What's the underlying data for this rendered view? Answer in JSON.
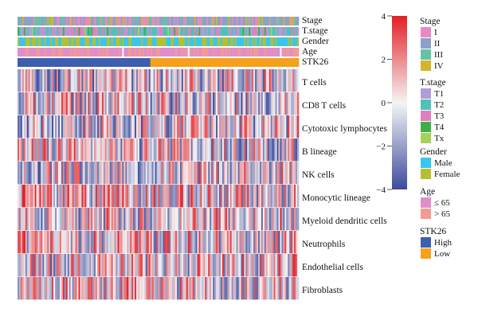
{
  "chart_data": {
    "type": "heatmap",
    "title": "",
    "annotation_tracks": [
      "Stage",
      "T.stage",
      "Gender",
      "Age",
      "STK26"
    ],
    "rows": [
      "T cells",
      "CD8 T cells",
      "Cytotoxic lymphocytes",
      "B lineage",
      "NK cells",
      "Monocytic lineage",
      "Myeloid dendritic cells",
      "Neutrophils",
      "Endothelial cells",
      "Fibroblasts"
    ],
    "color_scale": {
      "range": [
        -4,
        4
      ],
      "ticks": [
        "4",
        "2",
        "0",
        "−2",
        "−4"
      ],
      "tick_values": [
        4,
        2,
        0,
        -2,
        -4
      ],
      "low_color": "#3b4a9c",
      "mid_color": "#f5f5f5",
      "high_color": "#e21f26"
    },
    "stk26_groups": {
      "High": 0.47,
      "Low": 0.53
    },
    "legends": [
      {
        "title": "Stage",
        "items": [
          {
            "label": "I",
            "color": "#e78ac3"
          },
          {
            "label": "II",
            "color": "#8da0cb"
          },
          {
            "label": "III",
            "color": "#66c2a5"
          },
          {
            "label": "IV",
            "color": "#d4b42a"
          }
        ]
      },
      {
        "title": "T.stage",
        "items": [
          {
            "label": "T1",
            "color": "#b19cd9"
          },
          {
            "label": "T2",
            "color": "#4ec3b5"
          },
          {
            "label": "T3",
            "color": "#e37fbf"
          },
          {
            "label": "T4",
            "color": "#3fae49"
          },
          {
            "label": "Tx",
            "color": "#a6d15a"
          }
        ]
      },
      {
        "title": "Gender",
        "items": [
          {
            "label": "Male",
            "color": "#38c6f0"
          },
          {
            "label": "Female",
            "color": "#b6bf2f"
          }
        ]
      },
      {
        "title": "Age",
        "items": [
          {
            "label": "≤ 65",
            "color": "#df8fc8"
          },
          {
            "label": "> 65",
            "color": "#f39a93"
          }
        ]
      },
      {
        "title": "STK26",
        "items": [
          {
            "label": "High",
            "color": "#3d5fad"
          },
          {
            "label": "Low",
            "color": "#f4a11c"
          }
        ]
      }
    ]
  }
}
